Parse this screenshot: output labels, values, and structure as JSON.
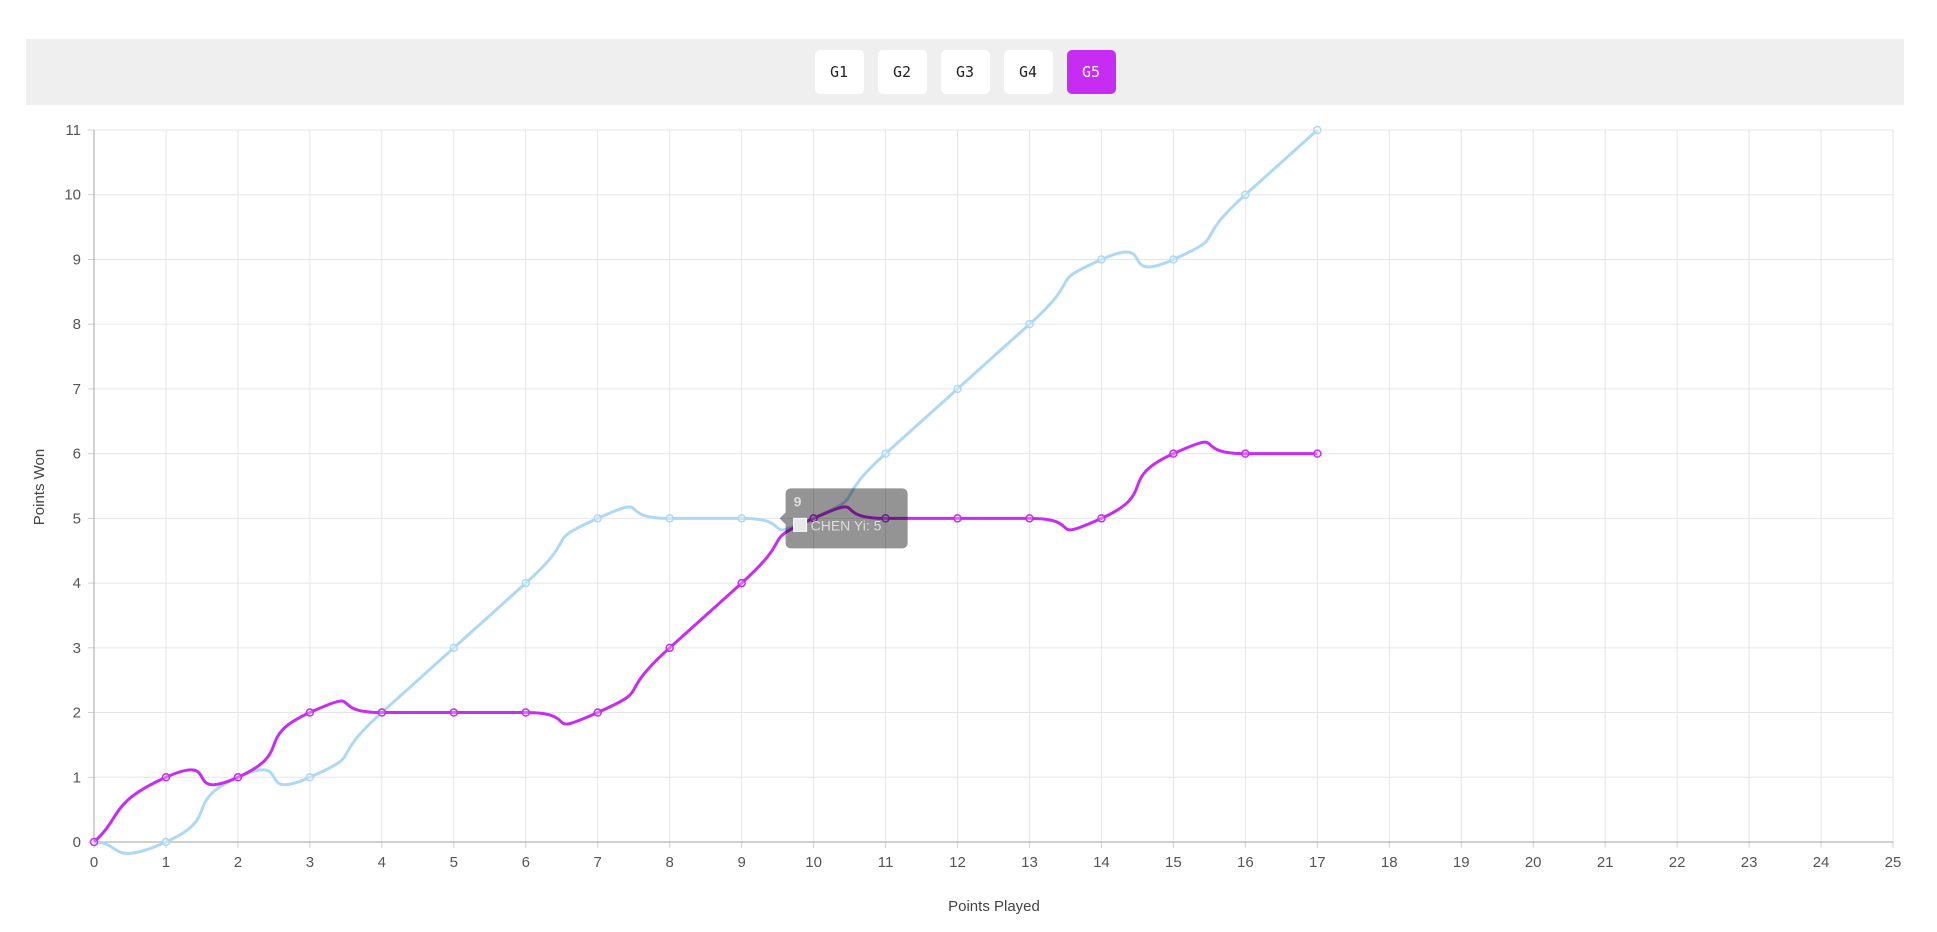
{
  "game_tabs": [
    {
      "label": "G1",
      "active": false
    },
    {
      "label": "G2",
      "active": false
    },
    {
      "label": "G3",
      "active": false
    },
    {
      "label": "G4",
      "active": false
    },
    {
      "label": "G5",
      "active": true
    }
  ],
  "colors": {
    "accent": "#c62cf2",
    "series_a": "#aed8f3",
    "series_b": "#c62cf2",
    "grid": "#e6e6e6",
    "tab_bar_bg": "#efefef"
  },
  "chart_data": {
    "type": "line",
    "xlabel": "Points Played",
    "ylabel": "Points Won",
    "xlim": [
      0,
      25
    ],
    "ylim": [
      0,
      11
    ],
    "x_ticks": [
      0,
      1,
      2,
      3,
      4,
      5,
      6,
      7,
      8,
      9,
      10,
      11,
      12,
      13,
      14,
      15,
      16,
      17,
      18,
      19,
      20,
      21,
      22,
      23,
      24,
      25
    ],
    "y_ticks": [
      0,
      1,
      2,
      3,
      4,
      5,
      6,
      7,
      8,
      9,
      10,
      11
    ],
    "grid": true,
    "x": [
      0,
      1,
      2,
      3,
      4,
      5,
      6,
      7,
      8,
      9,
      10,
      11,
      12,
      13,
      14,
      15,
      16,
      17
    ],
    "series": [
      {
        "color": "#aed8f3",
        "values": [
          0,
          0,
          1,
          1,
          2,
          3,
          4,
          5,
          5,
          5,
          5,
          6,
          7,
          8,
          9,
          9,
          10,
          11
        ]
      },
      {
        "name": "CHEN Yi",
        "color": "#c62cf2",
        "values": [
          0,
          1,
          1,
          2,
          2,
          2,
          2,
          2,
          3,
          4,
          5,
          5,
          5,
          5,
          5,
          6,
          6,
          6
        ]
      }
    ],
    "tooltip": {
      "title": "9",
      "label": "CHEN Yi: 5",
      "x": 10,
      "y": 5
    }
  }
}
